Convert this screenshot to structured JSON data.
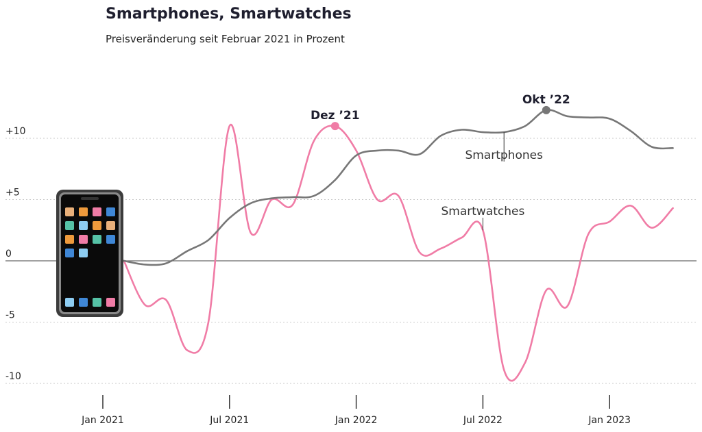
{
  "title": "Smartphones, Smartwatches",
  "subtitle": "Preisveränderung seit Februar 2021 in Prozent",
  "chart_data": {
    "type": "line",
    "title": "Smartphones, Smartwatches",
    "subtitle": "Preisveränderung seit Februar 2021 in Prozent",
    "xlabel": "",
    "ylabel": "",
    "ylim": [
      -10.5,
      12
    ],
    "grid": true,
    "y_ticks": [
      {
        "value": 10,
        "label": "+10"
      },
      {
        "value": 5,
        "label": "+5"
      },
      {
        "value": 0,
        "label": "0"
      },
      {
        "value": -5,
        "label": "-5"
      },
      {
        "value": -10,
        "label": "-10"
      }
    ],
    "x_ticks": [
      {
        "date": "2021-01",
        "label": "Jan 2021"
      },
      {
        "date": "2021-07",
        "label": "Jul 2021"
      },
      {
        "date": "2022-01",
        "label": "Jan 2022"
      },
      {
        "date": "2022-07",
        "label": "Jul 2022"
      },
      {
        "date": "2023-01",
        "label": "Jan 2023"
      }
    ],
    "x": [
      "2021-02",
      "2021-03",
      "2021-04",
      "2021-05",
      "2021-06",
      "2021-07",
      "2021-08",
      "2021-09",
      "2021-10",
      "2021-11",
      "2021-12",
      "2022-01",
      "2022-02",
      "2022-03",
      "2022-04",
      "2022-05",
      "2022-06",
      "2022-07",
      "2022-08",
      "2022-09",
      "2022-10",
      "2022-11",
      "2022-12",
      "2023-01",
      "2023-02",
      "2023-03",
      "2023-04"
    ],
    "series": [
      {
        "name": "Smartphones",
        "color": "#777777",
        "values": [
          0.0,
          -0.3,
          -0.2,
          0.8,
          1.7,
          3.5,
          4.7,
          5.1,
          5.2,
          5.3,
          6.6,
          8.6,
          9.0,
          9.0,
          8.7,
          10.2,
          10.7,
          10.5,
          10.5,
          11.0,
          12.3,
          11.8,
          11.7,
          11.6,
          10.6,
          9.3,
          9.2
        ]
      },
      {
        "name": "Smartwatches",
        "color": "#f07ca6",
        "values": [
          0.0,
          -3.6,
          -3.2,
          -7.3,
          -5.0,
          11.0,
          2.3,
          5.0,
          4.6,
          9.8,
          11.0,
          9.0,
          5.0,
          5.3,
          0.7,
          1.0,
          1.9,
          2.5,
          -8.9,
          -8.3,
          -2.4,
          -3.7,
          2.2,
          3.2,
          4.5,
          2.7,
          4.3
        ]
      }
    ],
    "annotations": [
      {
        "text": "Dez ’21",
        "series": "Smartwatches",
        "x": "2021-12",
        "y": 11.0
      },
      {
        "text": "Okt ’22",
        "series": "Smartphones",
        "x": "2022-10",
        "y": 12.3
      }
    ]
  },
  "icon": "smartphone-icon"
}
